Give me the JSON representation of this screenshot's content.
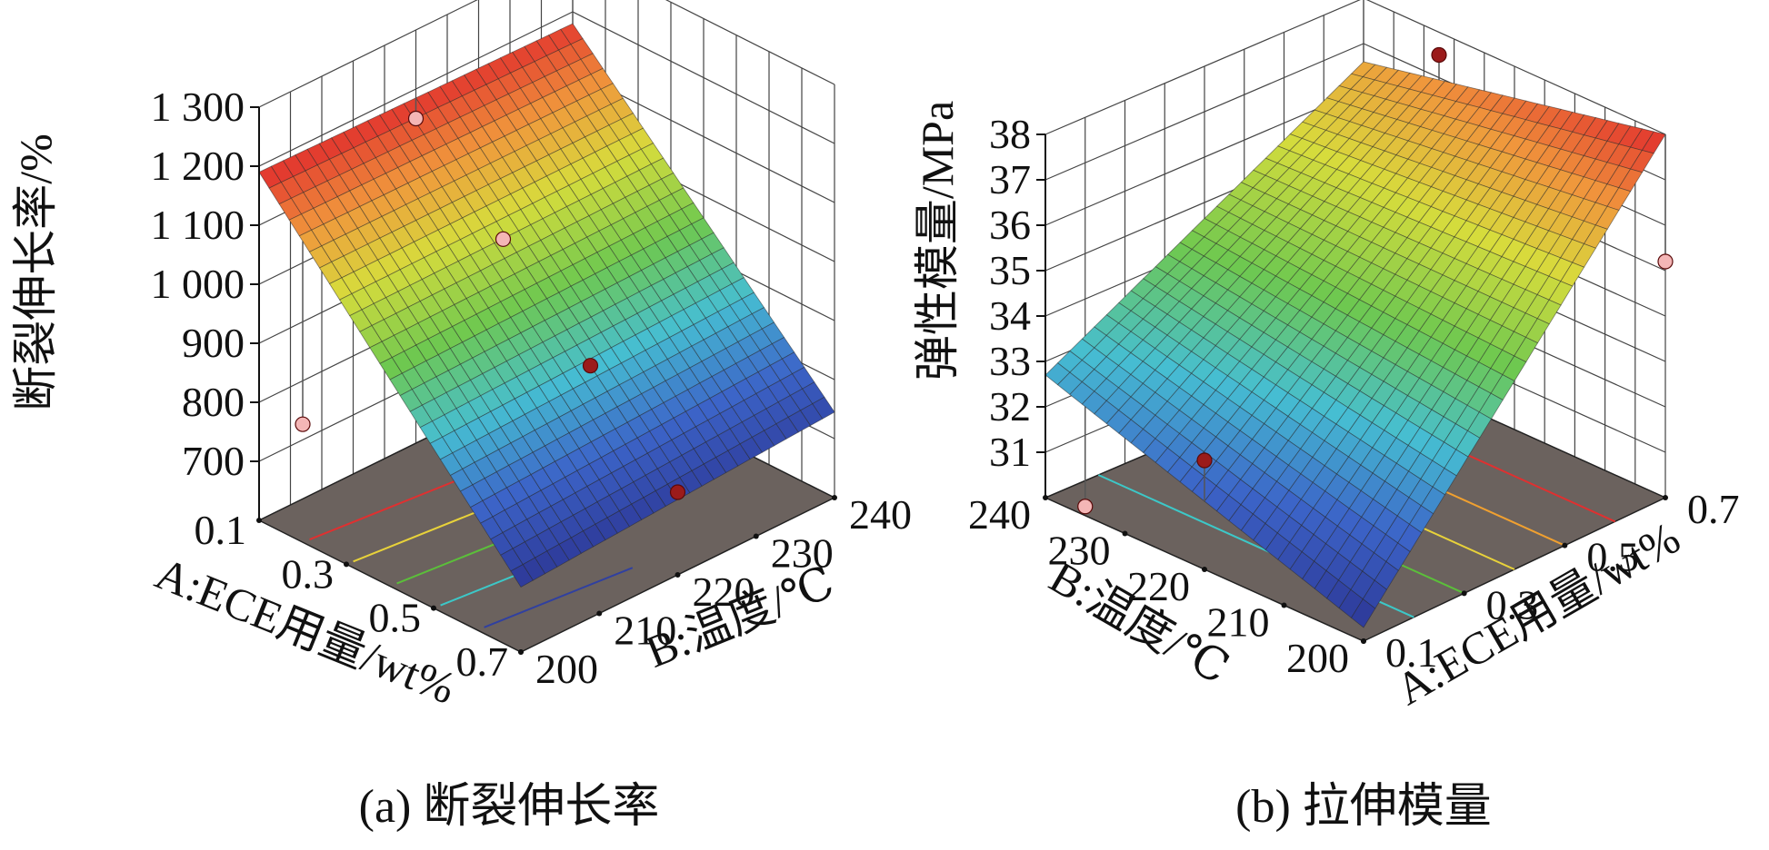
{
  "chart_data": [
    {
      "type": "surface3d",
      "caption": "(a) 断裂伸长率",
      "zlabel": "断裂伸长率/%",
      "xlabel": "A:ECE用量/wt%",
      "ylabel": "B:温度/℃",
      "x_ticks": [
        "0.1",
        "0.3",
        "0.5",
        "0.7"
      ],
      "y_ticks": [
        "200",
        "210",
        "220",
        "230",
        "240"
      ],
      "z_ticks": [
        "700",
        "800",
        "900",
        "1 000",
        "1 100",
        "1 200",
        "1 300"
      ],
      "x_range": [
        0.1,
        0.7
      ],
      "y_range": [
        200,
        240
      ],
      "z_range": [
        600,
        1300
      ],
      "surface_corners": {
        "A0.1_T200": 1190,
        "A0.1_T240": 1180,
        "A0.7_T200": 710,
        "A0.7_T240": 745
      },
      "points": [
        {
          "A": 0.1,
          "T": 220,
          "value": 1150
        },
        {
          "A": 0.3,
          "T": 220,
          "value": 1020
        },
        {
          "A": 0.5,
          "T": 220,
          "value": 880
        },
        {
          "A": 0.7,
          "T": 220,
          "value": 740
        },
        {
          "A": 0.2,
          "T": 200,
          "value": 800
        }
      ],
      "floor_contours": [
        "red",
        "yellow",
        "green",
        "cyan",
        "blue"
      ],
      "grid": true
    },
    {
      "type": "surface3d",
      "caption": "(b) 拉伸模量",
      "zlabel": "弹性模量/MPa",
      "xlabel": "A:ECE用量/wt%",
      "ylabel": "B:温度/℃",
      "x_ticks": [
        "0.1",
        "0.3",
        "0.5",
        "0.7"
      ],
      "y_ticks": [
        "200",
        "210",
        "220",
        "230",
        "240"
      ],
      "z_ticks": [
        "31",
        "32",
        "33",
        "34",
        "35",
        "36",
        "37",
        "38"
      ],
      "x_range": [
        0.1,
        0.7
      ],
      "y_range": [
        200,
        240
      ],
      "z_range": [
        30,
        38
      ],
      "surface_corners": {
        "A0.1_T200": 30.3,
        "A0.1_T240": 32.7,
        "A0.7_T200": 38.0,
        "A0.7_T240": 36.6
      },
      "points": [
        {
          "A": 0.7,
          "T": 230,
          "value": 37.5
        },
        {
          "A": 0.7,
          "T": 200,
          "value": 35.2
        },
        {
          "A": 0.1,
          "T": 220,
          "value": 32.4
        },
        {
          "A": 0.1,
          "T": 235,
          "value": 30.2
        }
      ],
      "floor_contours": [
        "cyan",
        "green",
        "yellow",
        "orange",
        "red"
      ],
      "grid": true
    }
  ]
}
